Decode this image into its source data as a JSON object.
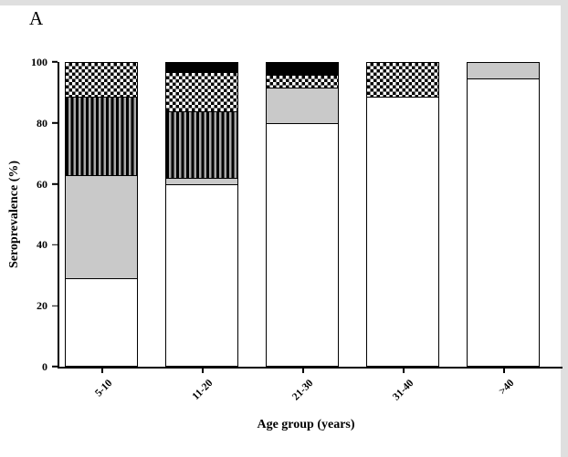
{
  "panel_label": "A",
  "chart_data": {
    "type": "bar",
    "stacked": true,
    "title": "",
    "xlabel": "Age group (years)",
    "ylabel": "Seroprevalence (%)",
    "ylim": [
      0,
      100
    ],
    "yticks": [
      0,
      20,
      40,
      60,
      80,
      100
    ],
    "categories": [
      "5-10",
      "11-20",
      "21-30",
      "31-40",
      ">40"
    ],
    "series": [
      {
        "name": "segment-white",
        "pattern": "solid-white",
        "values": [
          29,
          60,
          80,
          89,
          95
        ]
      },
      {
        "name": "segment-light-gray",
        "pattern": "solid-gray",
        "values": [
          34,
          2,
          12,
          0,
          5
        ]
      },
      {
        "name": "segment-vertical-stripes",
        "pattern": "vstripes",
        "values": [
          26,
          22,
          0,
          0,
          0
        ]
      },
      {
        "name": "segment-checkerboard",
        "pattern": "checker",
        "values": [
          11,
          13,
          4,
          11,
          0
        ]
      },
      {
        "name": "segment-black",
        "pattern": "solid-black",
        "values": [
          0,
          3,
          4,
          0,
          0
        ]
      }
    ],
    "colors": {
      "axis": "#000000",
      "bar_border": "#000000",
      "gray_fill": "#c9c9c9"
    },
    "legend": "none",
    "grid": false
  }
}
